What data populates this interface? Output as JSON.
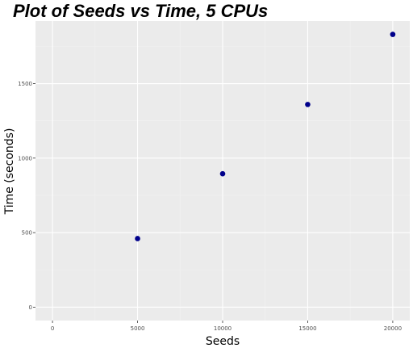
{
  "chart_data": {
    "type": "scatter",
    "title": "Plot of Seeds vs Time, 5 CPUs",
    "xlabel": "Seeds",
    "ylabel": "Time (seconds)",
    "x_ticks": [
      0,
      5000,
      10000,
      15000,
      20000
    ],
    "x_tick_labels": [
      "0",
      "5000",
      "10000",
      "15000",
      "20000"
    ],
    "y_ticks": [
      0,
      500,
      1000,
      1500
    ],
    "y_tick_labels": [
      "0",
      "500",
      "1000",
      "1500"
    ],
    "xlim": [
      -1000,
      21000
    ],
    "ylim": [
      -90,
      1920
    ],
    "grid": true,
    "point_color": "#00008b",
    "panel_color": "#ebebeb",
    "series": [
      {
        "x": [
          5000,
          10000,
          15000,
          20000
        ],
        "y": [
          460,
          895,
          1360,
          1830
        ]
      }
    ]
  }
}
